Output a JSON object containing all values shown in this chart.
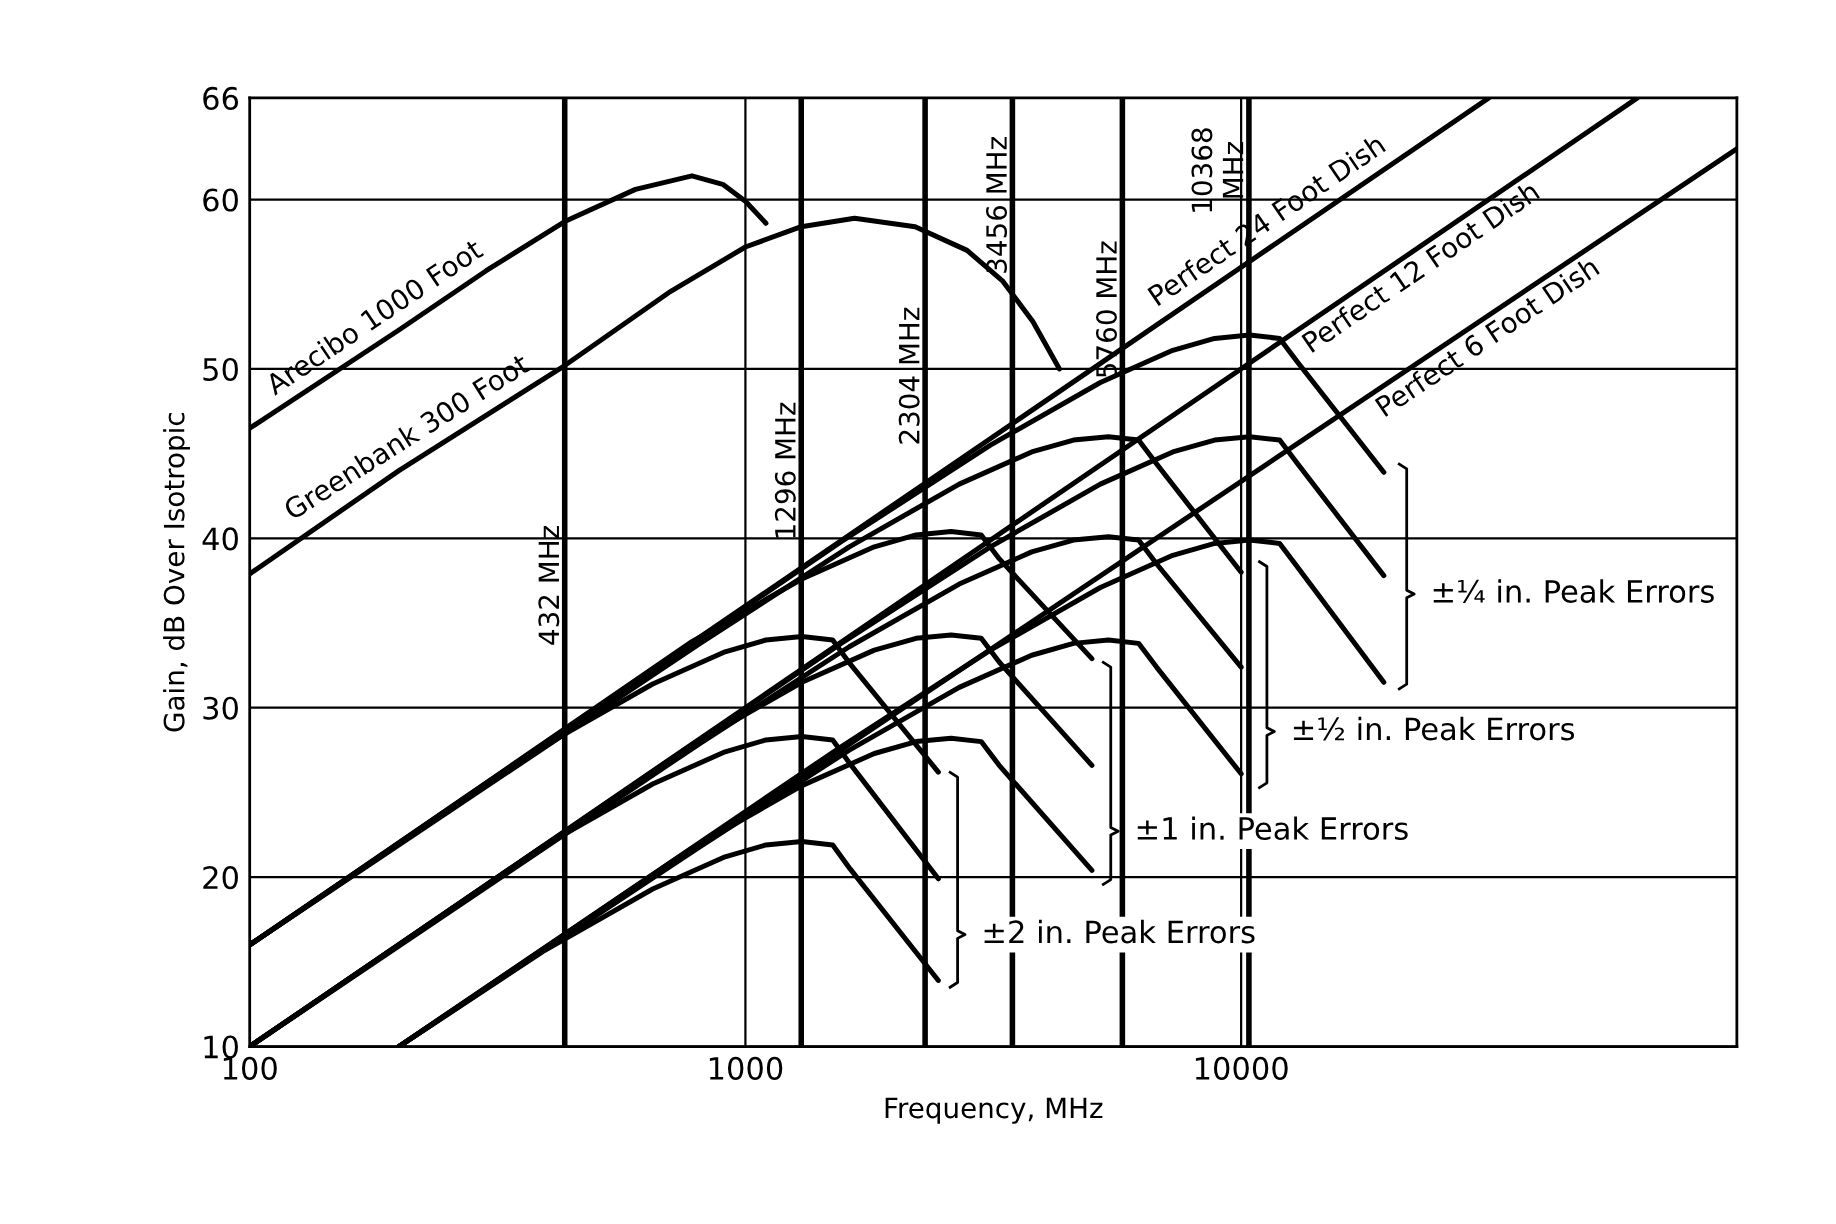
{
  "chart_data": {
    "type": "line",
    "xlabel": "Frequency, MHz",
    "ylabel": "Gain, dB Over Isotropic",
    "log": "x",
    "grid": true,
    "legend": false,
    "xlim": [
      100,
      100000
    ],
    "xticks": [
      100,
      1000,
      10000
    ],
    "ylim": [
      10,
      66
    ],
    "yticks": [
      10,
      20,
      30,
      40,
      50,
      60,
      66
    ],
    "series": [
      {
        "name": "Arecibo 1000 Foot",
        "color": "#000000",
        "x": [
          100,
          200,
          300,
          432,
          600,
          780,
          900,
          1000,
          1100
        ],
        "values": [
          46.5,
          52.3,
          55.8,
          58.7,
          60.6,
          61.4,
          60.9,
          59.9,
          58.6
        ]
      },
      {
        "name": "Greenbank 300 Foot",
        "color": "#000000",
        "x": [
          100,
          200,
          432,
          700,
          1000,
          1296,
          1660,
          2200,
          2800,
          3300,
          3800,
          4300
        ],
        "values": [
          37.9,
          44,
          50.2,
          54.5,
          57.2,
          58.4,
          58.9,
          58.4,
          57,
          55.2,
          52.8,
          50
        ]
      },
      {
        "name": "Perfect 24 Foot Dish",
        "color": "#000000",
        "x": [
          100,
          31600
        ],
        "values": [
          16,
          66
        ]
      },
      {
        "name": "Perfect 12 Foot Dish",
        "color": "#000000",
        "x": [
          100,
          63000
        ],
        "values": [
          10,
          66
        ]
      },
      {
        "name": "Perfect 6 Foot Dish",
        "color": "#000000",
        "x": [
          200,
          100000
        ],
        "values": [
          10,
          63
        ]
      },
      {
        "color": "#000000",
        "x": [
          100,
          390,
          650,
          910,
          1100,
          1300,
          1500,
          1625,
          2450
        ],
        "values": [
          16,
          27.7,
          31.4,
          33.3,
          34.0,
          34.2,
          34.0,
          32.6,
          26.2
        ]
      },
      {
        "color": "#000000",
        "x": [
          100,
          390,
          650,
          910,
          1100,
          1300,
          1500,
          1625,
          2450
        ],
        "values": [
          10,
          21.8,
          25.5,
          27.4,
          28.1,
          28.3,
          28.1,
          26.7,
          19.9
        ]
      },
      {
        "color": "#000000",
        "x": [
          200,
          390,
          650,
          910,
          1100,
          1300,
          1500,
          1625,
          2450
        ],
        "values": [
          10,
          15.6,
          19.3,
          21.2,
          21.9,
          22.1,
          21.9,
          20.5,
          13.9
        ]
      },
      {
        "color": "#000000",
        "x": [
          100,
          780,
          1300,
          1820,
          2210,
          2600,
          2990,
          3250,
          5000
        ],
        "values": [
          16,
          33.9,
          37.6,
          39.5,
          40.2,
          40.4,
          40.2,
          38.8,
          32.9
        ]
      },
      {
        "color": "#000000",
        "x": [
          100,
          780,
          1300,
          1820,
          2210,
          2600,
          2990,
          3250,
          5000
        ],
        "values": [
          10,
          27.8,
          31.5,
          33.4,
          34.1,
          34.3,
          34.1,
          32.7,
          26.6
        ]
      },
      {
        "color": "#000000",
        "x": [
          200,
          780,
          1300,
          1820,
          2210,
          2600,
          2990,
          3250,
          5000
        ],
        "values": [
          10,
          21.7,
          25.4,
          27.3,
          28.0,
          28.2,
          28.0,
          26.6,
          20.4
        ]
      },
      {
        "color": "#000000",
        "x": [
          100,
          810,
          1620,
          2700,
          3780,
          4590,
          5400,
          6210,
          6750,
          10000
        ],
        "values": [
          16,
          33.8,
          39.5,
          43.2,
          45.1,
          45.8,
          46.0,
          45.8,
          44.4,
          38.0
        ]
      },
      {
        "color": "#000000",
        "x": [
          100,
          810,
          1620,
          2700,
          3780,
          4590,
          5400,
          6210,
          6750,
          10000
        ],
        "values": [
          10,
          27.9,
          33.6,
          37.3,
          39.2,
          39.9,
          40.1,
          39.9,
          38.5,
          32.4
        ]
      },
      {
        "color": "#000000",
        "x": [
          200,
          810,
          1620,
          2700,
          3780,
          4590,
          5400,
          6210,
          6750,
          10000
        ],
        "values": [
          10,
          21.8,
          27.5,
          31.2,
          33.1,
          33.8,
          34.0,
          33.8,
          32.4,
          26.1
        ]
      },
      {
        "color": "#000000",
        "x": [
          100,
          1560,
          3120,
          5200,
          7280,
          8840,
          10400,
          11960,
          13000,
          19400
        ],
        "values": [
          16,
          39.8,
          45.5,
          49.2,
          51.1,
          51.8,
          52.0,
          51.8,
          50.4,
          43.9
        ]
      },
      {
        "color": "#000000",
        "x": [
          100,
          1560,
          3120,
          5200,
          7280,
          8840,
          10400,
          11960,
          13000,
          19400
        ],
        "values": [
          10,
          33.8,
          39.5,
          43.2,
          45.1,
          45.8,
          46.0,
          45.8,
          44.4,
          37.8
        ]
      },
      {
        "color": "#000000",
        "x": [
          200,
          1560,
          3120,
          5200,
          7280,
          8840,
          10400,
          11960,
          13000,
          19400
        ],
        "values": [
          10,
          27.7,
          33.4,
          37.1,
          39.0,
          39.7,
          39.9,
          39.7,
          38.3,
          31.5
        ]
      }
    ],
    "ref_lines": [
      {
        "axis": "x",
        "value": 432,
        "label": "432 MHz",
        "color": "#000000"
      },
      {
        "axis": "x",
        "value": 1296,
        "label": "1296 MHz",
        "color": "#000000"
      },
      {
        "axis": "x",
        "value": 2304,
        "label": "2304 MHz",
        "color": "#000000"
      },
      {
        "axis": "x",
        "value": 3456,
        "label": "3456 MHz",
        "color": "#000000"
      },
      {
        "axis": "x",
        "value": 5760,
        "label": "5760 MHz",
        "color": "#000000"
      },
      {
        "axis": "x",
        "value": 10368,
        "label": "10368\nMHz",
        "color": "#000000"
      }
    ],
    "annotations": [
      "±¼ in. Peak Errors",
      "±½ in. Peak Errors",
      "±1 in. Peak Errors",
      "±2 in. Peak Errors"
    ]
  }
}
